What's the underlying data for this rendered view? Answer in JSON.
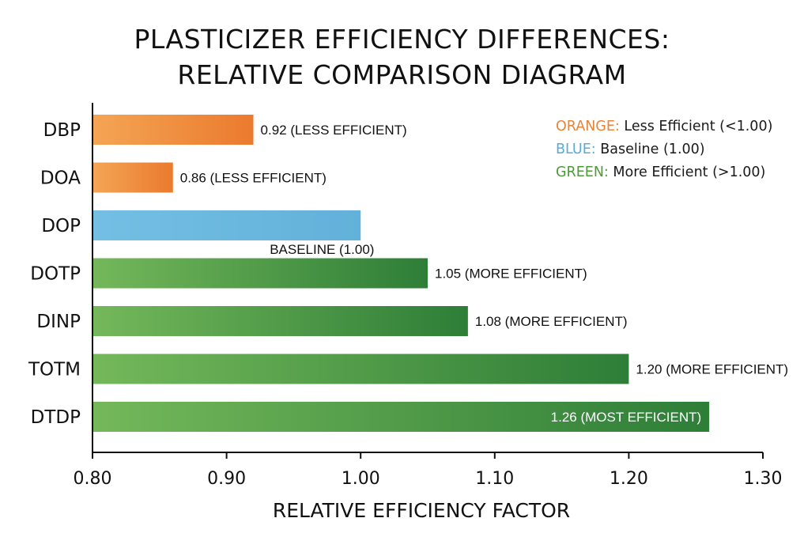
{
  "title_line1": "PLASTICIZER EFFICIENCY DIFFERENCES:",
  "title_line2": "RELATIVE COMPARISON DIAGRAM",
  "colors": {
    "orange": "#F08A3A",
    "blue": "#6BB8DE",
    "green": "#5FA845"
  },
  "legend": [
    {
      "key": "ORANGE:",
      "desc": " Less Efficient (<1.00)",
      "color": "#E8843A"
    },
    {
      "key": "BLUE:",
      "desc": " Baseline (1.00)",
      "color": "#5AAAD6"
    },
    {
      "key": "GREEN:",
      "desc": " More Efficient (>1.00)",
      "color": "#4E9A3A"
    }
  ],
  "chart_data": {
    "type": "bar",
    "orientation": "horizontal",
    "categories": [
      "DBP",
      "DOA",
      "DOP",
      "DOTP",
      "DINP",
      "TOTM",
      "DTDP"
    ],
    "values": [
      0.92,
      0.86,
      1.0,
      1.05,
      1.08,
      1.2,
      1.26
    ],
    "bar_colors": [
      "orange",
      "orange",
      "blue",
      "green",
      "green",
      "green",
      "green"
    ],
    "data_labels": [
      "0.92 (LESS EFFICIENT)",
      "0.86 (LESS EFFICIENT)",
      "BASELINE (1.00)",
      "1.05 (MORE EFFICIENT)",
      "1.08 (MORE EFFICIENT)",
      "1.20 (MORE EFFICIENT)",
      "1.26 (MOST EFFICIENT)"
    ],
    "xlim": [
      0.8,
      1.3
    ],
    "xticks": [
      "0.80",
      "0.90",
      "1.00",
      "1.10",
      "1.20",
      "1.30"
    ],
    "tick_values": [
      0.8,
      0.9,
      1.0,
      1.1,
      1.2,
      1.3
    ],
    "xlabel": "RELATIVE EFFICIENCY FACTOR",
    "ylabel": "",
    "grid": false
  }
}
